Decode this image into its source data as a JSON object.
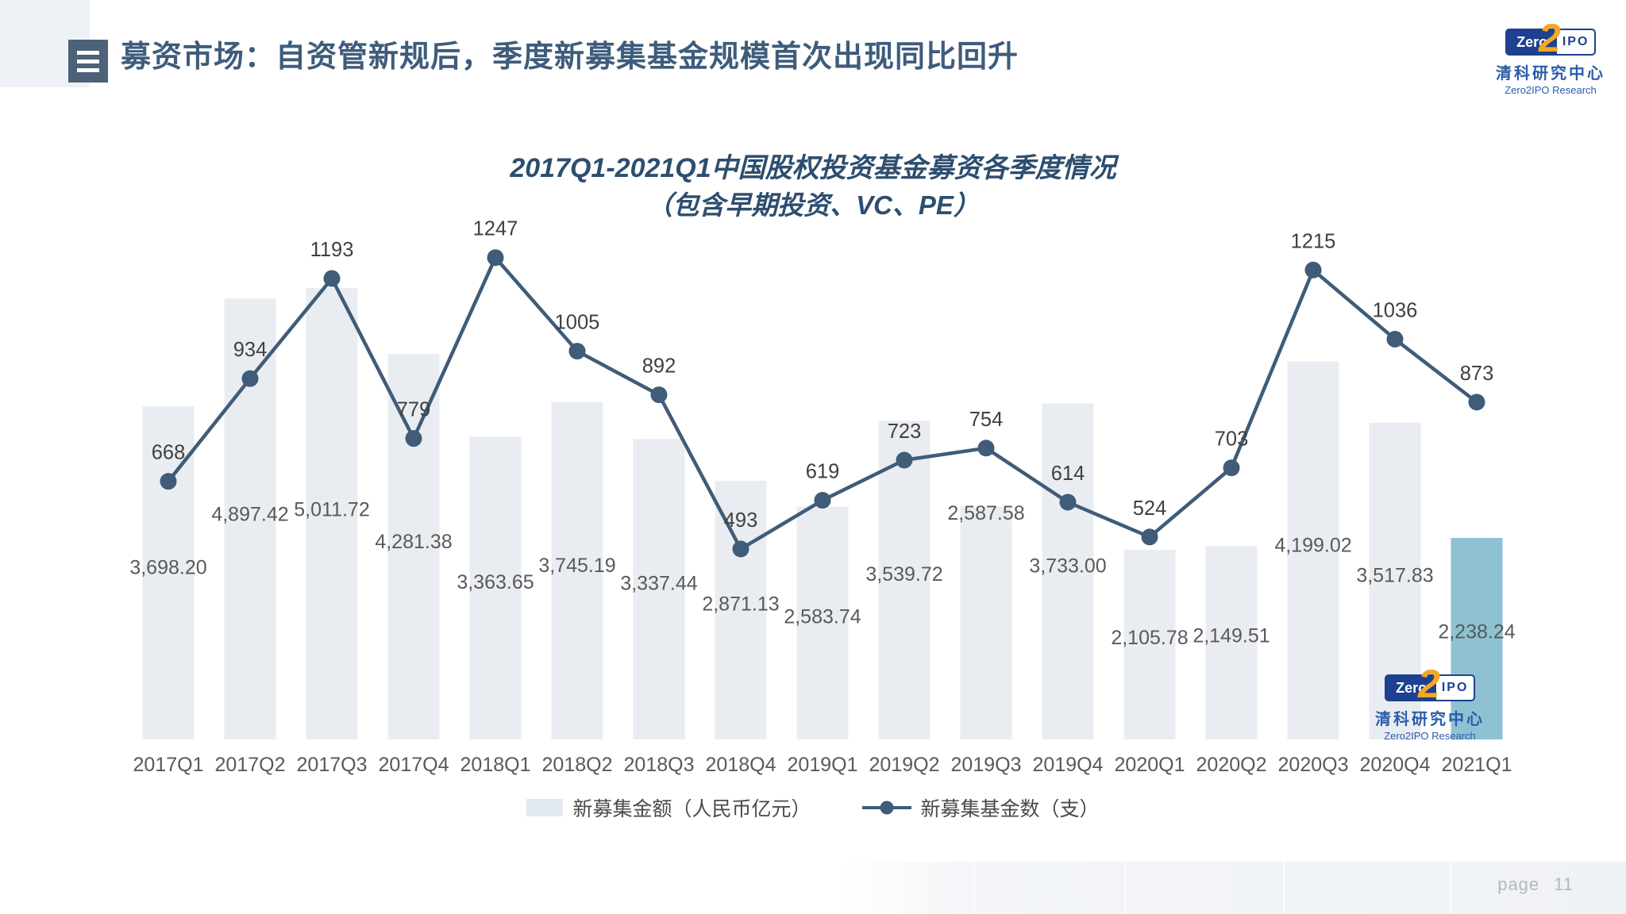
{
  "header": {
    "title": "募资市场：自资管新规后，季度新募集基金规模首次出现同比回升"
  },
  "brand": {
    "badge_left": "Zero",
    "badge_mid": "2",
    "badge_right": "IPO",
    "name_cn": "清科研究中心",
    "name_en": "Zero2IPO Research"
  },
  "chart_data": {
    "type": "bar",
    "combo": "bar+line",
    "title": "2017Q1-2021Q1中国股权投资基金募资各季度情况",
    "subtitle": "（包含早期投资、VC、PE）",
    "categories": [
      "2017Q1",
      "2017Q2",
      "2017Q3",
      "2017Q4",
      "2018Q1",
      "2018Q2",
      "2018Q3",
      "2018Q4",
      "2019Q1",
      "2019Q2",
      "2019Q3",
      "2019Q4",
      "2020Q1",
      "2020Q2",
      "2020Q3",
      "2020Q4",
      "2021Q1"
    ],
    "series": [
      {
        "name": "新募集金额（人民币亿元）",
        "type": "bar",
        "values": [
          3698.2,
          4897.42,
          5011.72,
          4281.38,
          3363.65,
          3745.19,
          3337.44,
          2871.13,
          2583.74,
          3539.72,
          2587.58,
          3733.0,
          2105.78,
          2149.51,
          4199.02,
          3517.83,
          2238.24
        ],
        "labels": [
          "3,698.20",
          "4,897.42",
          "5,011.72",
          "4,281.38",
          "3,363.65",
          "3,745.19",
          "3,337.44",
          "2,871.13",
          "2,583.74",
          "3,539.72",
          "2,587.58",
          "3,733.00",
          "2,105.78",
          "2,149.51",
          "4,199.02",
          "3,517.83",
          "2,238.24"
        ],
        "highlight_index": 16
      },
      {
        "name": "新募集基金数（支）",
        "type": "line",
        "values": [
          668,
          934,
          1193,
          779,
          1247,
          1005,
          892,
          493,
          619,
          723,
          754,
          614,
          524,
          703,
          1215,
          1036,
          873
        ]
      }
    ],
    "bar_axis_range": [
      0,
      6000
    ],
    "line_axis_range": [
      0,
      1400
    ],
    "grid": false,
    "axes_visible": false,
    "legend_position": "bottom"
  },
  "footer": {
    "page_label": "page",
    "page_number": "11"
  },
  "colors": {
    "bar": "#e9edf2",
    "bar_highlight": "#8ec2d3",
    "line": "#3f5c78",
    "bar_label": "#595959",
    "line_label": "#404040",
    "axis_label": "#595959",
    "title": "#3e5c7b",
    "chart_title": "#2d4e6f",
    "accent_square": "#4b6278",
    "logo_blue": "#1d4190",
    "logo_orange": "#f6a623",
    "brand_blue": "#2a5caa",
    "page_text": "#b3b8bf"
  }
}
